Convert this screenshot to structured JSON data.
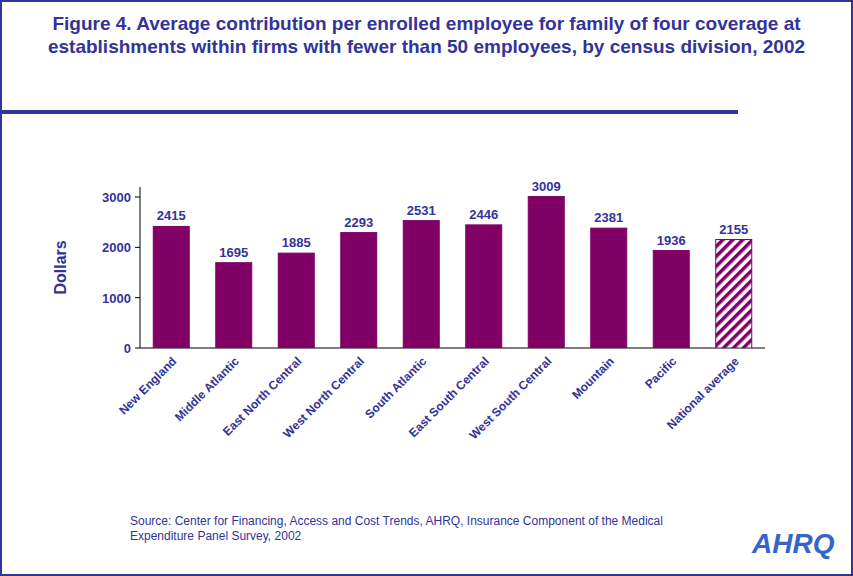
{
  "chart_data": {
    "type": "bar",
    "title": "Figure 4. Average contribution per enrolled employee for family of four coverage at establishments within firms with fewer than 50 employees, by census division, 2002",
    "y_label": "Dollars",
    "categories": [
      "New England",
      "Middle Atlantic",
      "East North Central",
      "West North Central",
      "South Atlantic",
      "East South Central",
      "West South Central",
      "Mountain",
      "Pacific",
      "National average"
    ],
    "values": [
      2415,
      1695,
      1885,
      2293,
      2531,
      2446,
      3009,
      2381,
      1936,
      2155
    ],
    "color": "#800066",
    "ylim": [
      0,
      3200
    ],
    "yticks": [
      0,
      1000,
      2000,
      3000
    ],
    "grid": false,
    "data_labels": true,
    "annotations": [
      "Source: Center for Financing, Access and Cost Trends, AHRQ, Insurance Component of the Medical Expenditure Panel Survey, 2002",
      "AHRQ"
    ]
  }
}
